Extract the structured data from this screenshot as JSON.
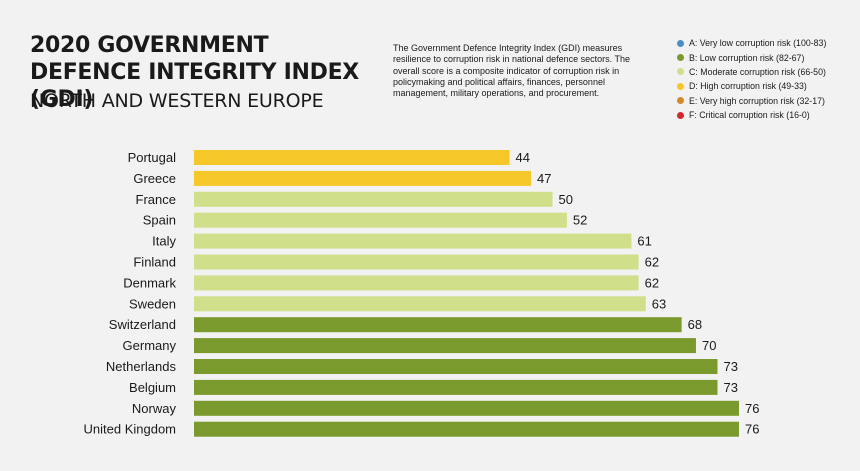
{
  "header": {
    "title": "2020 GOVERNMENT DEFENCE INTEGRITY INDEX (GDI)",
    "subtitle": "NORTH AND WESTERN EUROPE",
    "description": "The Government Defence Integrity Index (GDI) measures resilience to corruption risk in national defence sectors. The overall score is a composite indicator of corruption risk in policymaking and political affairs, finances, personnel management, military operations, and procurement."
  },
  "legend": [
    {
      "label": "A: Very low corruption risk (100-83)",
      "color": "#4a8fc4"
    },
    {
      "label": "B: Low corruption risk (82-67)",
      "color": "#7b9a2e"
    },
    {
      "label": "C: Moderate corruption risk (66-50)",
      "color": "#cfdf8a"
    },
    {
      "label": "D: High corruption risk (49-33)",
      "color": "#f5c728"
    },
    {
      "label": "E: Very high corruption risk (32-17)",
      "color": "#d48a2a"
    },
    {
      "label": "F: Critical corruption risk (16-0)",
      "color": "#d12a2a"
    }
  ],
  "chart_data": {
    "type": "bar",
    "orientation": "horizontal",
    "categories": [
      "Portugal",
      "Greece",
      "France",
      "Spain",
      "Italy",
      "Finland",
      "Denmark",
      "Sweden",
      "Switzerland",
      "Germany",
      "Netherlands",
      "Belgium",
      "Norway",
      "United Kingdom"
    ],
    "values": [
      44,
      47,
      50,
      52,
      61,
      62,
      62,
      63,
      68,
      70,
      73,
      73,
      76,
      76
    ],
    "band_colors": {
      "A": "#4a8fc4",
      "B": "#7b9a2e",
      "C": "#cfdf8a",
      "D": "#f5c728",
      "E": "#d48a2a",
      "F": "#d12a2a"
    },
    "xlim": [
      0,
      76
    ],
    "grid": false,
    "legend_position": "top-right"
  }
}
